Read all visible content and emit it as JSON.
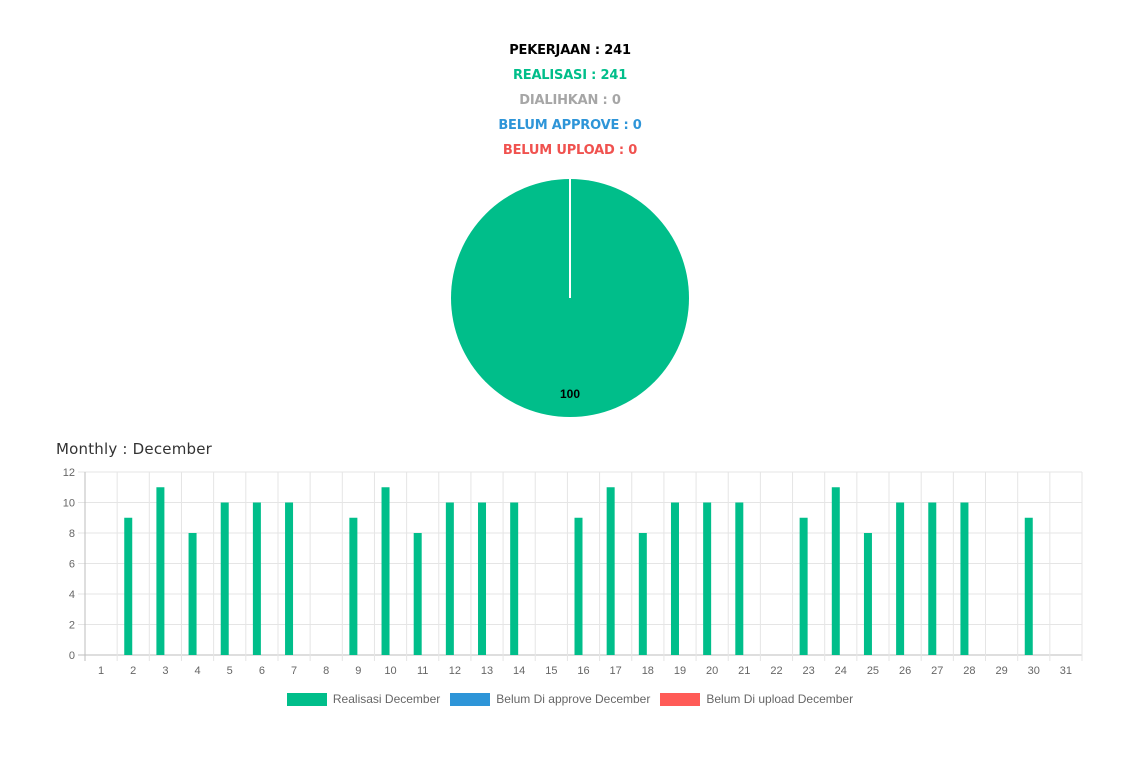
{
  "summary": {
    "pekerjaan": "PEKERJAAN : 241",
    "realisasi": "REALISASI : 241",
    "dialihkan": "DIALIHKAN : 0",
    "belum_approve": "BELUM APPROVE : 0",
    "belum_upload": "BELUM UPLOAD : 0"
  },
  "colors": {
    "black": "#000000",
    "realisasi": "#00be8a",
    "dialihkan": "#a6a6a6",
    "approve": "#2e95d8",
    "upload": "#f0524f"
  },
  "monthly_title": "Monthly : December",
  "legend": [
    {
      "label": "Realisasi December",
      "color": "#00be8a"
    },
    {
      "label": "Belum Di approve December",
      "color": "#2e95d8"
    },
    {
      "label": "Belum Di upload December",
      "color": "#ff5b57"
    }
  ],
  "chart_data": [
    {
      "type": "pie",
      "slices": [
        {
          "label": "REALISASI",
          "value": 100,
          "color": "#00be8a"
        },
        {
          "label": "DIALIHKAN",
          "value": 0,
          "color": "#a6a6a6"
        },
        {
          "label": "BELUM APPROVE",
          "value": 0,
          "color": "#2e95d8"
        },
        {
          "label": "BELUM UPLOAD",
          "value": 0,
          "color": "#f0524f"
        }
      ],
      "data_label": "100"
    },
    {
      "type": "bar",
      "title": "Monthly : December",
      "categories": [
        "1",
        "2",
        "3",
        "4",
        "5",
        "6",
        "7",
        "8",
        "9",
        "10",
        "11",
        "12",
        "13",
        "14",
        "15",
        "16",
        "17",
        "18",
        "19",
        "20",
        "21",
        "22",
        "23",
        "24",
        "25",
        "26",
        "27",
        "28",
        "29",
        "30",
        "31"
      ],
      "series": [
        {
          "name": "Realisasi December",
          "color": "#00be8a",
          "values": [
            0,
            9,
            11,
            8,
            10,
            10,
            10,
            0,
            9,
            11,
            8,
            10,
            10,
            10,
            0,
            9,
            11,
            8,
            10,
            10,
            10,
            0,
            9,
            11,
            8,
            10,
            10,
            10,
            0,
            9,
            0
          ]
        },
        {
          "name": "Belum Di approve December",
          "color": "#2e95d8",
          "values": [
            0,
            0,
            0,
            0,
            0,
            0,
            0,
            0,
            0,
            0,
            0,
            0,
            0,
            0,
            0,
            0,
            0,
            0,
            0,
            0,
            0,
            0,
            0,
            0,
            0,
            0,
            0,
            0,
            0,
            0,
            0
          ]
        },
        {
          "name": "Belum Di upload December",
          "color": "#ff5b57",
          "values": [
            0,
            0,
            0,
            0,
            0,
            0,
            0,
            0,
            0,
            0,
            0,
            0,
            0,
            0,
            0,
            0,
            0,
            0,
            0,
            0,
            0,
            0,
            0,
            0,
            0,
            0,
            0,
            0,
            0,
            0,
            0
          ]
        }
      ],
      "ylim": [
        0,
        12
      ],
      "yticks": [
        0,
        2,
        4,
        6,
        8,
        10,
        12
      ],
      "grid": true,
      "legend_position": "bottom"
    }
  ]
}
